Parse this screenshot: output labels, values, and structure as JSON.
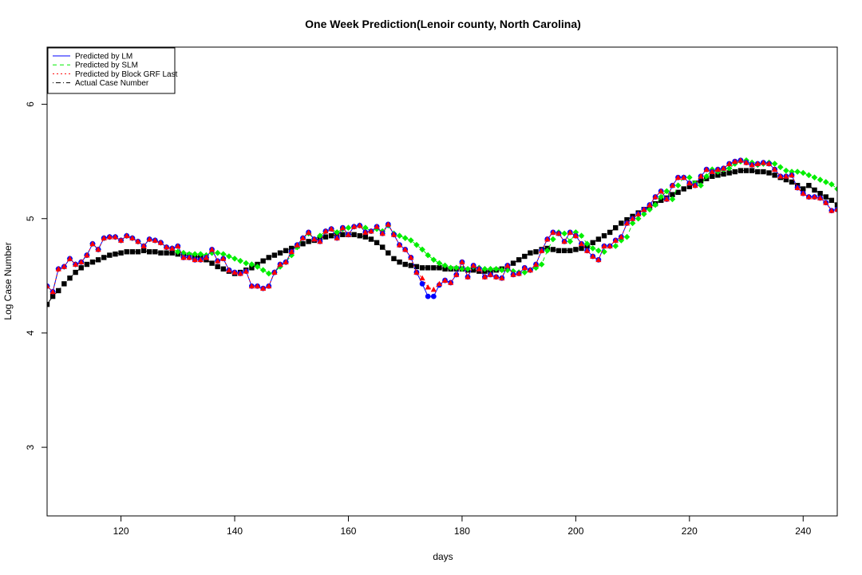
{
  "chart_data": {
    "type": "line",
    "title": "One Week Prediction(Lenoir county, North Carolina)",
    "xlabel": "days",
    "ylabel": "Log Case Number",
    "xlim": [
      107,
      246
    ],
    "ylim": [
      2.4,
      6.5
    ],
    "x_ticks": [
      "120",
      "140",
      "160",
      "180",
      "200",
      "220",
      "240"
    ],
    "y_ticks": [
      "3",
      "4",
      "5",
      "6"
    ],
    "legend_position": "top-left",
    "legend": [
      {
        "label": "Predicted by LM",
        "color": "#0000ff",
        "style": "solid"
      },
      {
        "label": "Predicted by SLM",
        "color": "#00ee00",
        "style": "dashed"
      },
      {
        "label": "Predicted by Block GRF Last",
        "color": "#ff0000",
        "style": "dotted"
      },
      {
        "label": "Actual Case Number",
        "color": "#000000",
        "style": "dotdash"
      }
    ],
    "x": [
      107,
      108,
      109,
      110,
      111,
      112,
      113,
      114,
      115,
      116,
      117,
      118,
      119,
      120,
      121,
      122,
      123,
      124,
      125,
      126,
      127,
      128,
      129,
      130,
      131,
      132,
      133,
      134,
      135,
      136,
      137,
      138,
      139,
      140,
      141,
      142,
      143,
      144,
      145,
      146,
      147,
      148,
      149,
      150,
      151,
      152,
      153,
      154,
      155,
      156,
      157,
      158,
      159,
      160,
      161,
      162,
      163,
      164,
      165,
      166,
      167,
      168,
      169,
      170,
      171,
      172,
      173,
      174,
      175,
      176,
      177,
      178,
      179,
      180,
      181,
      182,
      183,
      184,
      185,
      186,
      187,
      188,
      189,
      190,
      191,
      192,
      193,
      194,
      195,
      196,
      197,
      198,
      199,
      200,
      201,
      202,
      203,
      204,
      205,
      206,
      207,
      208,
      209,
      210,
      211,
      212,
      213,
      214,
      215,
      216,
      217,
      218,
      219,
      220,
      221,
      222,
      223,
      224,
      225,
      226,
      227,
      228,
      229,
      230,
      231,
      232,
      233,
      234,
      235,
      236,
      237,
      238,
      239,
      240,
      241,
      242,
      243,
      244,
      245,
      246
    ],
    "series": [
      {
        "name": "Actual Case Number",
        "color": "#000000",
        "marker": "square",
        "values": [
          4.25,
          4.32,
          4.37,
          4.43,
          4.48,
          4.53,
          4.57,
          4.6,
          4.62,
          4.64,
          4.66,
          4.68,
          4.69,
          4.7,
          4.71,
          4.71,
          4.71,
          4.72,
          4.71,
          4.71,
          4.7,
          4.7,
          4.7,
          4.69,
          4.68,
          4.68,
          4.67,
          4.66,
          4.64,
          4.61,
          4.58,
          4.56,
          4.54,
          4.52,
          4.53,
          4.55,
          4.57,
          4.6,
          4.63,
          4.66,
          4.68,
          4.7,
          4.72,
          4.74,
          4.76,
          4.78,
          4.8,
          4.81,
          4.83,
          4.84,
          4.85,
          4.86,
          4.86,
          4.86,
          4.86,
          4.85,
          4.84,
          4.82,
          4.79,
          4.75,
          4.7,
          4.65,
          4.62,
          4.6,
          4.59,
          4.58,
          4.57,
          4.57,
          4.57,
          4.57,
          4.56,
          4.56,
          4.56,
          4.56,
          4.55,
          4.55,
          4.54,
          4.54,
          4.54,
          4.55,
          4.56,
          4.58,
          4.61,
          4.64,
          4.67,
          4.7,
          4.71,
          4.73,
          4.74,
          4.73,
          4.72,
          4.72,
          4.72,
          4.73,
          4.74,
          4.76,
          4.79,
          4.82,
          4.85,
          4.88,
          4.92,
          4.96,
          4.99,
          5.02,
          5.05,
          5.08,
          5.1,
          5.13,
          5.16,
          5.18,
          5.21,
          5.23,
          5.26,
          5.28,
          5.31,
          5.33,
          5.35,
          5.37,
          5.38,
          5.39,
          5.4,
          5.41,
          5.42,
          5.42,
          5.42,
          5.41,
          5.41,
          5.4,
          5.38,
          5.36,
          5.34,
          5.32,
          5.29,
          5.26,
          5.29,
          5.25,
          5.22,
          5.19,
          5.16,
          5.12
        ]
      },
      {
        "name": "Predicted by SLM",
        "color": "#00ee00",
        "marker": "diamond",
        "values": [
          4.41,
          4.36,
          4.56,
          4.58,
          4.65,
          4.6,
          4.62,
          4.68,
          4.78,
          4.73,
          4.83,
          4.84,
          4.84,
          4.81,
          4.85,
          4.83,
          4.8,
          4.76,
          4.82,
          4.81,
          4.79,
          4.75,
          4.74,
          4.71,
          4.7,
          4.69,
          4.69,
          4.69,
          4.68,
          4.7,
          4.7,
          4.69,
          4.67,
          4.65,
          4.63,
          4.61,
          4.6,
          4.58,
          4.55,
          4.52,
          4.53,
          4.58,
          4.62,
          4.68,
          4.75,
          4.83,
          4.87,
          4.82,
          4.85,
          4.89,
          4.91,
          4.88,
          4.91,
          4.92,
          4.93,
          4.94,
          4.92,
          4.89,
          4.91,
          4.89,
          4.94,
          4.87,
          4.85,
          4.83,
          4.81,
          4.77,
          4.73,
          4.68,
          4.64,
          4.61,
          4.59,
          4.57,
          4.57,
          4.56,
          4.56,
          4.58,
          4.57,
          4.56,
          4.56,
          4.56,
          4.55,
          4.55,
          4.54,
          4.53,
          4.53,
          4.55,
          4.57,
          4.6,
          4.72,
          4.82,
          4.88,
          4.87,
          4.8,
          4.88,
          4.85,
          4.78,
          4.74,
          4.72,
          4.71,
          4.76,
          4.76,
          4.81,
          4.84,
          4.96,
          5.0,
          5.04,
          5.08,
          5.12,
          5.19,
          5.24,
          5.17,
          5.29,
          5.36,
          5.36,
          5.31,
          5.29,
          5.37,
          5.43,
          5.41,
          5.43,
          5.44,
          5.48,
          5.5,
          5.51,
          5.49,
          5.47,
          5.48,
          5.49,
          5.48,
          5.45,
          5.42,
          5.41,
          5.41,
          5.4,
          5.38,
          5.36,
          5.34,
          5.32,
          5.3,
          5.26
        ]
      },
      {
        "name": "Predicted by LM",
        "color": "#0000ff",
        "marker": "circle",
        "values": [
          4.41,
          4.36,
          4.56,
          4.58,
          4.65,
          4.6,
          4.62,
          4.68,
          4.78,
          4.73,
          4.83,
          4.84,
          4.84,
          4.81,
          4.85,
          4.83,
          4.8,
          4.76,
          4.82,
          4.81,
          4.79,
          4.75,
          4.74,
          4.76,
          4.66,
          4.66,
          4.64,
          4.64,
          4.66,
          4.73,
          4.63,
          4.65,
          4.55,
          4.53,
          4.52,
          4.54,
          4.41,
          4.41,
          4.39,
          4.41,
          4.53,
          4.6,
          4.62,
          4.71,
          4.77,
          4.83,
          4.88,
          4.82,
          4.8,
          4.89,
          4.91,
          4.83,
          4.92,
          4.86,
          4.93,
          4.94,
          4.88,
          4.89,
          4.93,
          4.87,
          4.95,
          4.86,
          4.77,
          4.73,
          4.66,
          4.53,
          4.43,
          4.32,
          4.32,
          4.42,
          4.46,
          4.44,
          4.51,
          4.62,
          4.49,
          4.59,
          4.56,
          4.49,
          4.51,
          4.49,
          4.48,
          4.59,
          4.51,
          4.52,
          4.57,
          4.55,
          4.6,
          4.72,
          4.82,
          4.88,
          4.87,
          4.8,
          4.88,
          4.85,
          4.78,
          4.72,
          4.67,
          4.64,
          4.76,
          4.76,
          4.81,
          4.84,
          4.96,
          5.0,
          5.04,
          5.08,
          5.12,
          5.19,
          5.24,
          5.17,
          5.29,
          5.36,
          5.36,
          5.31,
          5.29,
          5.37,
          5.43,
          5.41,
          5.43,
          5.44,
          5.48,
          5.5,
          5.51,
          5.49,
          5.47,
          5.48,
          5.49,
          5.48,
          5.43,
          5.37,
          5.37,
          5.38,
          5.27,
          5.22,
          5.19,
          5.19,
          5.18,
          5.14,
          5.07,
          5.08
        ]
      },
      {
        "name": "Predicted by Block GRF Last",
        "color": "#ff0000",
        "marker": "triangle",
        "values": [
          4.41,
          4.36,
          4.56,
          4.58,
          4.65,
          4.6,
          4.62,
          4.68,
          4.78,
          4.73,
          4.83,
          4.84,
          4.84,
          4.81,
          4.85,
          4.83,
          4.8,
          4.76,
          4.82,
          4.81,
          4.79,
          4.75,
          4.74,
          4.76,
          4.66,
          4.66,
          4.64,
          4.64,
          4.66,
          4.73,
          4.63,
          4.65,
          4.55,
          4.53,
          4.52,
          4.54,
          4.41,
          4.41,
          4.39,
          4.41,
          4.53,
          4.6,
          4.62,
          4.71,
          4.77,
          4.83,
          4.88,
          4.82,
          4.8,
          4.89,
          4.91,
          4.83,
          4.92,
          4.86,
          4.93,
          4.94,
          4.88,
          4.89,
          4.93,
          4.87,
          4.95,
          4.86,
          4.77,
          4.73,
          4.66,
          4.53,
          4.48,
          4.4,
          4.38,
          4.43,
          4.46,
          4.44,
          4.51,
          4.62,
          4.49,
          4.59,
          4.56,
          4.49,
          4.51,
          4.49,
          4.48,
          4.59,
          4.51,
          4.52,
          4.57,
          4.55,
          4.6,
          4.72,
          4.82,
          4.88,
          4.87,
          4.8,
          4.88,
          4.85,
          4.78,
          4.72,
          4.67,
          4.64,
          4.76,
          4.76,
          4.81,
          4.84,
          4.96,
          5.0,
          5.04,
          5.08,
          5.12,
          5.19,
          5.24,
          5.17,
          5.29,
          5.36,
          5.36,
          5.31,
          5.29,
          5.37,
          5.43,
          5.41,
          5.43,
          5.44,
          5.48,
          5.5,
          5.51,
          5.49,
          5.47,
          5.48,
          5.49,
          5.48,
          5.43,
          5.37,
          5.37,
          5.38,
          5.27,
          5.22,
          5.19,
          5.19,
          5.18,
          5.14,
          5.07,
          5.08
        ]
      }
    ]
  }
}
